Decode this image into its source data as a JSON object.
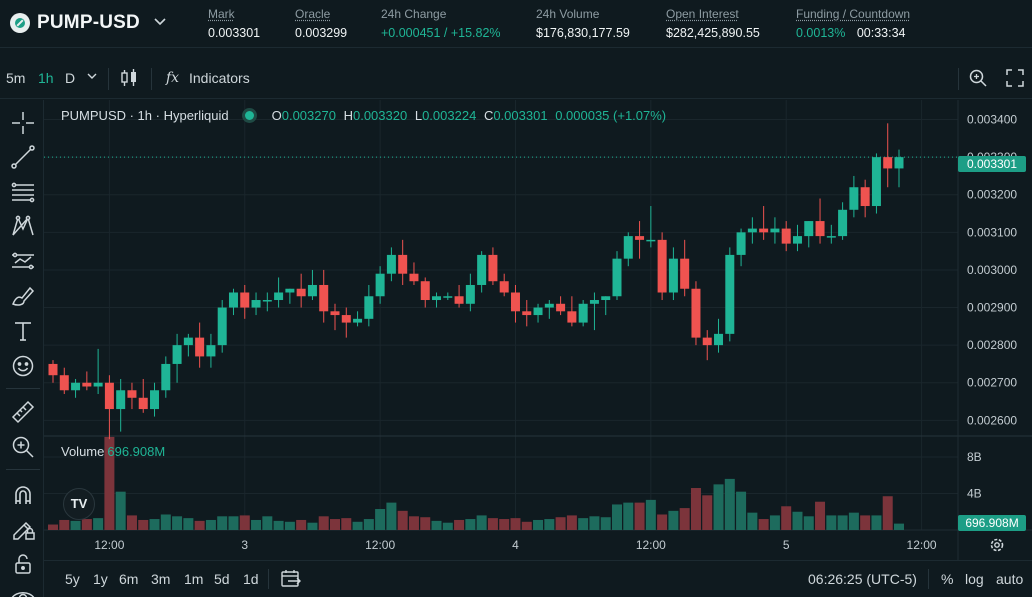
{
  "market": {
    "pair": "PUMP-USD",
    "stats": [
      {
        "label": "Mark",
        "value": "0.003301"
      },
      {
        "label": "Oracle",
        "value": "0.003299"
      },
      {
        "label": "24h Change",
        "value": "+0.000451 / +15.82%"
      },
      {
        "label": "24h Volume",
        "value": "$176,830,177.59"
      },
      {
        "label": "Open Interest",
        "value": "$282,425,890.55"
      },
      {
        "label": "Funding / Countdown",
        "value": "0.0013%",
        "value2": "00:33:34"
      }
    ]
  },
  "toolbar": {
    "intervals": [
      "5m",
      "1h",
      "D"
    ],
    "active_interval": "1h",
    "indicators_label": "Indicators",
    "fx_symbol": "fx"
  },
  "tools": [
    "crosshair-icon",
    "trendline-icon",
    "fib-icon",
    "pattern-icon",
    "forecast-icon",
    "brush-icon",
    "text-icon",
    "emoji-icon",
    "ruler-icon",
    "zoom-icon",
    "magnet-icon",
    "lock-pencil-icon",
    "lock-icon",
    "eye-icon"
  ],
  "legend": {
    "title": "PUMPUSD · 1h · Hyperliquid",
    "o_label": "O",
    "o": "0.003270",
    "h_label": "H",
    "h": "0.003320",
    "l_label": "L",
    "l": "0.003224",
    "c_label": "C",
    "c": "0.003301",
    "change": "0.000035 (+1.07%)"
  },
  "volume_legend": {
    "label": "Volume",
    "value": "696.908M"
  },
  "current_price_tag": "0.003301",
  "current_volume_tag": "696.908M",
  "tv_logo": "TV",
  "colors": {
    "up": "#1fb596",
    "down": "#ef5350",
    "up_vol": "#1d6b5d",
    "down_vol": "#7c343b",
    "grid": "#1a262c",
    "bg": "#0f1a1f"
  },
  "chart_data": {
    "type": "candlestick",
    "title": "PUMPUSD · 1h · Hyperliquid",
    "y_ticks": [
      "0.003400",
      "0.003300",
      "0.003200",
      "0.003100",
      "0.003000",
      "0.002900",
      "0.002800",
      "0.002700",
      "0.002600"
    ],
    "y_tick_values": [
      0.0034,
      0.0033,
      0.0032,
      0.0031,
      0.003,
      0.0029,
      0.0028,
      0.0027,
      0.0026
    ],
    "x_ticks": [
      "12:00",
      "3",
      "12:00",
      "4",
      "12:00",
      "5",
      "12:00"
    ],
    "x_tick_index": [
      5,
      17,
      29,
      41,
      53,
      65,
      77
    ],
    "volume_ticks": [
      "8B",
      "4B"
    ],
    "volume_tick_values": [
      8000000000,
      4000000000
    ],
    "ylim": [
      0.002561,
      0.003452
    ],
    "volume_max": 10300000000,
    "candles": [
      [
        0.00275,
        0.00276,
        0.0027,
        0.00272,
        600000000.0
      ],
      [
        0.00272,
        0.00274,
        0.00267,
        0.00268,
        1100000000.0
      ],
      [
        0.00268,
        0.00271,
        0.00266,
        0.0027,
        1000000000.0
      ],
      [
        0.0027,
        0.00273,
        0.00268,
        0.00269,
        1200000000.0
      ],
      [
        0.00269,
        0.00279,
        0.00267,
        0.0027,
        1300000000.0
      ],
      [
        0.0027,
        0.00272,
        0.00255,
        0.00263,
        10200000000.0
      ],
      [
        0.00263,
        0.00271,
        0.00257,
        0.00268,
        4200000000.0
      ],
      [
        0.00268,
        0.0027,
        0.00263,
        0.00266,
        1600000000.0
      ],
      [
        0.00266,
        0.00271,
        0.00262,
        0.00263,
        1100000000.0
      ],
      [
        0.00263,
        0.0027,
        0.00261,
        0.00268,
        1200000000.0
      ],
      [
        0.00268,
        0.00277,
        0.00266,
        0.00275,
        1700000000.0
      ],
      [
        0.00275,
        0.00283,
        0.0027,
        0.0028,
        1500000000.0
      ],
      [
        0.0028,
        0.00283,
        0.00277,
        0.00282,
        1300000000.0
      ],
      [
        0.00282,
        0.00286,
        0.00274,
        0.00277,
        1000000000.0
      ],
      [
        0.00277,
        0.00283,
        0.00274,
        0.0028,
        1100000000.0
      ],
      [
        0.0028,
        0.00292,
        0.00278,
        0.0029,
        1500000000.0
      ],
      [
        0.0029,
        0.00295,
        0.00288,
        0.00294,
        1500000000.0
      ],
      [
        0.00294,
        0.00296,
        0.00287,
        0.0029,
        1600000000.0
      ],
      [
        0.0029,
        0.00294,
        0.00288,
        0.00292,
        1100000000.0
      ],
      [
        0.00292,
        0.00294,
        0.00289,
        0.00292,
        1500000000.0
      ],
      [
        0.00292,
        0.00298,
        0.0029,
        0.00294,
        1000000000.0
      ],
      [
        0.00294,
        0.00295,
        0.00291,
        0.00295,
        900000000.0
      ],
      [
        0.00295,
        0.00299,
        0.0029,
        0.00293,
        1100000000.0
      ],
      [
        0.00293,
        0.003,
        0.00292,
        0.00296,
        800000000.0
      ],
      [
        0.00296,
        0.003,
        0.00286,
        0.00289,
        1500000000.0
      ],
      [
        0.00289,
        0.00291,
        0.00284,
        0.00288,
        1200000000.0
      ],
      [
        0.00288,
        0.0029,
        0.00282,
        0.00286,
        1300000000.0
      ],
      [
        0.00286,
        0.00289,
        0.00285,
        0.00287,
        900000000.0
      ],
      [
        0.00287,
        0.00296,
        0.00285,
        0.00293,
        1200000000.0
      ],
      [
        0.00293,
        0.00301,
        0.00291,
        0.00299,
        2300000000.0
      ],
      [
        0.00299,
        0.00306,
        0.00297,
        0.00304,
        3000000000.0
      ],
      [
        0.00304,
        0.00308,
        0.00296,
        0.00299,
        2100000000.0
      ],
      [
        0.00299,
        0.00302,
        0.00296,
        0.00297,
        1500000000.0
      ],
      [
        0.00297,
        0.00298,
        0.0029,
        0.00292,
        1400000000.0
      ],
      [
        0.00292,
        0.00294,
        0.0029,
        0.00293,
        1000000000.0
      ],
      [
        0.00293,
        0.00294,
        0.00292,
        0.00293,
        800000000.0
      ],
      [
        0.00293,
        0.00296,
        0.0029,
        0.00291,
        1100000000.0
      ],
      [
        0.00291,
        0.00299,
        0.00289,
        0.00296,
        1200000000.0
      ],
      [
        0.00296,
        0.00305,
        0.00294,
        0.00304,
        1600000000.0
      ],
      [
        0.00304,
        0.00306,
        0.00296,
        0.00297,
        1300000000.0
      ],
      [
        0.00297,
        0.00299,
        0.00293,
        0.00294,
        1200000000.0
      ],
      [
        0.00294,
        0.00296,
        0.00286,
        0.00289,
        1300000000.0
      ],
      [
        0.00289,
        0.00292,
        0.00285,
        0.00288,
        900000000.0
      ],
      [
        0.00288,
        0.00291,
        0.00286,
        0.0029,
        1100000000.0
      ],
      [
        0.0029,
        0.00292,
        0.00287,
        0.00291,
        1200000000.0
      ],
      [
        0.00291,
        0.00293,
        0.00288,
        0.00289,
        1400000000.0
      ],
      [
        0.00289,
        0.00293,
        0.00285,
        0.00286,
        1600000000.0
      ],
      [
        0.00286,
        0.00292,
        0.00285,
        0.00291,
        1300000000.0
      ],
      [
        0.00291,
        0.00294,
        0.00284,
        0.00292,
        1500000000.0
      ],
      [
        0.00292,
        0.00293,
        0.00288,
        0.00293,
        1400000000.0
      ],
      [
        0.00293,
        0.00305,
        0.00292,
        0.00303,
        2800000000.0
      ],
      [
        0.00303,
        0.0031,
        0.00301,
        0.00309,
        3000000000.0
      ],
      [
        0.00309,
        0.00313,
        0.00303,
        0.00308,
        3000000000.0
      ],
      [
        0.00308,
        0.00317,
        0.00306,
        0.00308,
        3300000000.0
      ],
      [
        0.00308,
        0.0031,
        0.00292,
        0.00294,
        1700000000.0
      ],
      [
        0.00294,
        0.00306,
        0.00292,
        0.00303,
        2100000000.0
      ],
      [
        0.00303,
        0.00308,
        0.00293,
        0.00295,
        2400000000.0
      ],
      [
        0.00295,
        0.00297,
        0.0028,
        0.00282,
        4600000000.0
      ],
      [
        0.00282,
        0.00284,
        0.00276,
        0.0028,
        3800000000.0
      ],
      [
        0.0028,
        0.00287,
        0.00278,
        0.00283,
        5000000000.0
      ],
      [
        0.00283,
        0.00306,
        0.00281,
        0.00304,
        5600000000.0
      ],
      [
        0.00304,
        0.00311,
        0.00301,
        0.0031,
        4200000000.0
      ],
      [
        0.0031,
        0.00314,
        0.00307,
        0.00311,
        1900000000.0
      ],
      [
        0.00311,
        0.00317,
        0.00308,
        0.0031,
        1200000000.0
      ],
      [
        0.0031,
        0.00314,
        0.00307,
        0.00311,
        1600000000.0
      ],
      [
        0.00311,
        0.00313,
        0.00305,
        0.00307,
        2600000000.0
      ],
      [
        0.00307,
        0.00312,
        0.00305,
        0.00309,
        2000000000.0
      ],
      [
        0.00309,
        0.00313,
        0.00306,
        0.00313,
        1500000000.0
      ],
      [
        0.00313,
        0.00319,
        0.00307,
        0.00309,
        3100000000.0
      ],
      [
        0.00309,
        0.00312,
        0.00307,
        0.00309,
        1600000000.0
      ],
      [
        0.00309,
        0.00318,
        0.00308,
        0.00316,
        1600000000.0
      ],
      [
        0.00316,
        0.00325,
        0.00314,
        0.00322,
        1900000000.0
      ],
      [
        0.00322,
        0.00324,
        0.00314,
        0.00317,
        1600000000.0
      ],
      [
        0.00317,
        0.00331,
        0.00315,
        0.0033,
        1600000000.0
      ],
      [
        0.0033,
        0.00339,
        0.00322,
        0.00327,
        3700000000.0
      ],
      [
        0.00327,
        0.00332,
        0.00322,
        0.0033,
        700000000.0
      ]
    ]
  },
  "bottom_bar": {
    "ranges": [
      "5y",
      "1y",
      "6m",
      "3m",
      "1m",
      "5d",
      "1d"
    ],
    "clock": "06:26:25 (UTC-5)",
    "percent": "%",
    "log": "log",
    "auto": "auto"
  }
}
